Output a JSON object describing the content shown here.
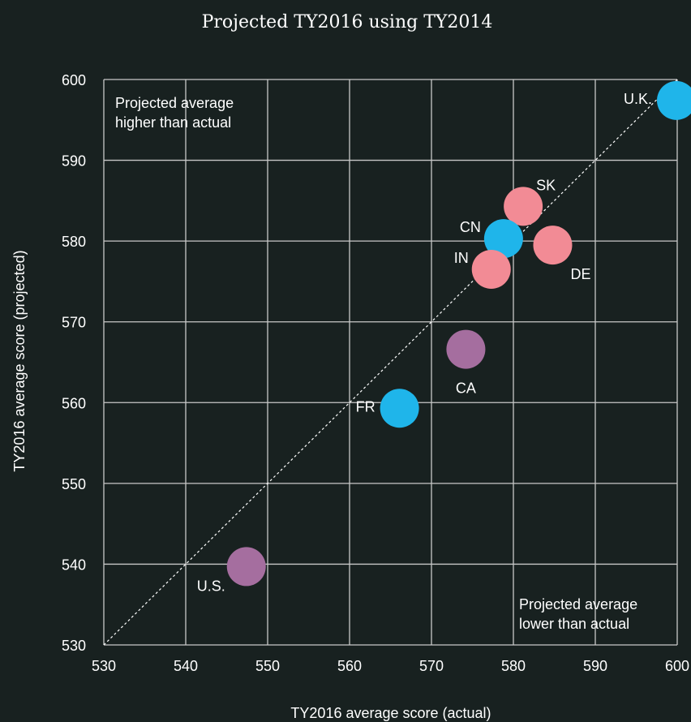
{
  "chart_data": {
    "type": "scatter",
    "title": "Projected TY2016 using TY2014",
    "xlabel": "TY2016 average score (actual)",
    "ylabel": "TY2016 average score (projected)",
    "xlim": [
      530,
      600
    ],
    "ylim": [
      530,
      600
    ],
    "xticks": [
      530,
      540,
      550,
      560,
      570,
      580,
      590,
      600
    ],
    "yticks": [
      530,
      540,
      550,
      560,
      570,
      580,
      590,
      600
    ],
    "grid": true,
    "reference_line": {
      "style": "dotted",
      "from": [
        530,
        530
      ],
      "to": [
        600,
        600
      ]
    },
    "annotations": [
      {
        "id": "upper-left",
        "lines": [
          "Projected average",
          "higher than actual"
        ]
      },
      {
        "id": "lower-right",
        "lines": [
          "Projected average",
          "lower than actual"
        ]
      }
    ],
    "colors": {
      "background": "#182120",
      "grid": "#c8c8c8",
      "blue": "#1fb5ea",
      "pink": "#f28b95",
      "purple": "#a56e9f",
      "text": "#ffffff"
    },
    "points": [
      {
        "label": "U.K.",
        "x": 599.9,
        "y": 597.4,
        "color": "blue",
        "label_pos": "left"
      },
      {
        "label": "SK",
        "x": 581.2,
        "y": 584.3,
        "color": "pink",
        "label_pos": "upper-right"
      },
      {
        "label": "CN",
        "x": 578.8,
        "y": 580.3,
        "color": "blue",
        "label_pos": "upper-left"
      },
      {
        "label": "DE",
        "x": 584.8,
        "y": 579.5,
        "color": "pink",
        "label_pos": "lower-right"
      },
      {
        "label": "IN",
        "x": 577.3,
        "y": 576.5,
        "color": "pink",
        "label_pos": "upper-left"
      },
      {
        "label": "CA",
        "x": 574.2,
        "y": 566.6,
        "color": "purple",
        "label_pos": "below"
      },
      {
        "label": "FR",
        "x": 566.1,
        "y": 559.3,
        "color": "blue",
        "label_pos": "left"
      },
      {
        "label": "U.S.",
        "x": 547.4,
        "y": 539.7,
        "color": "purple",
        "label_pos": "lower-left"
      }
    ]
  }
}
